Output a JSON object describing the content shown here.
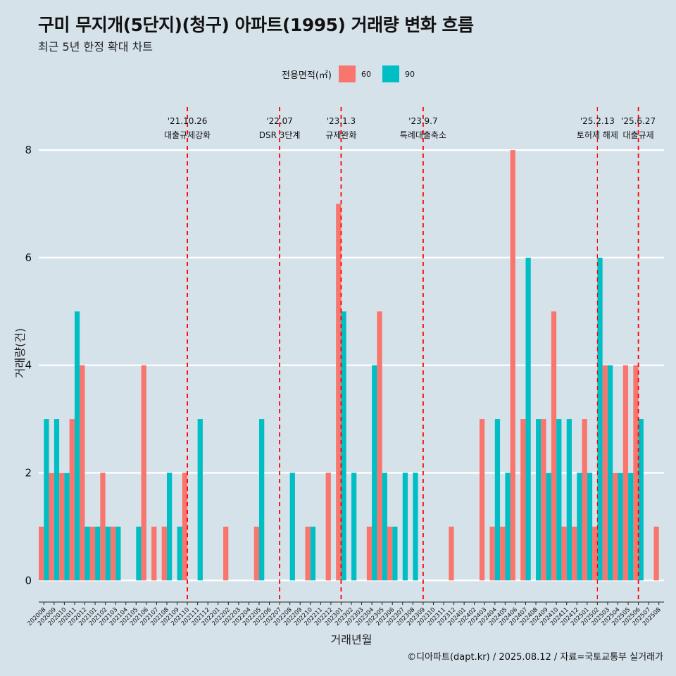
{
  "header": {
    "title": "구미 무지개(5단지)(청구) 아파트(1995) 거래량 변화 흐름",
    "subtitle": "최근 5년 한정 확대 차트"
  },
  "legend": {
    "title": "전용면적(㎡)",
    "items": [
      {
        "label": "60",
        "color": "#f8766d"
      },
      {
        "label": "90",
        "color": "#00bfc4"
      }
    ]
  },
  "caption": "©디아파트(dapt.kr) / 2025.08.12 / 자료=국토교통부 실거래가",
  "chart_data": {
    "type": "bar",
    "title": "구미 무지개(5단지)(청구) 아파트(1995) 거래량 변화 흐름",
    "xlabel": "거래년월",
    "ylabel": "거래량(건)",
    "ylim": [
      -0.35,
      8.8
    ],
    "yticks": [
      0,
      2,
      4,
      6,
      8
    ],
    "categories": [
      "202008",
      "202009",
      "202010",
      "202011",
      "202012",
      "202101",
      "202102",
      "202103",
      "202104",
      "202105",
      "202106",
      "202107",
      "202108",
      "202109",
      "202110",
      "202111",
      "202112",
      "202201",
      "202202",
      "202203",
      "202204",
      "202205",
      "202206",
      "202207",
      "202208",
      "202209",
      "202210",
      "202211",
      "202212",
      "202301",
      "202302",
      "202303",
      "202304",
      "202305",
      "202306",
      "202307",
      "202308",
      "202309",
      "202310",
      "202311",
      "202312",
      "202401",
      "202402",
      "202403",
      "202404",
      "202405",
      "202406",
      "202407",
      "202408",
      "202409",
      "202410",
      "202411",
      "202412",
      "202501",
      "202502",
      "202503",
      "202504",
      "202505",
      "202506",
      "202507",
      "202508"
    ],
    "series": [
      {
        "name": "60",
        "color": "#f8766d",
        "values": [
          1,
          2,
          2,
          3,
          4,
          1,
          2,
          1,
          0,
          0,
          4,
          1,
          1,
          0,
          2,
          0,
          0,
          0,
          1,
          0,
          0,
          1,
          0,
          0,
          0,
          0,
          1,
          0,
          2,
          7,
          0,
          0,
          1,
          5,
          1,
          0,
          0,
          0,
          0,
          0,
          1,
          0,
          0,
          3,
          1,
          1,
          8,
          3,
          0,
          3,
          5,
          1,
          1,
          3,
          1,
          4,
          2,
          4,
          4,
          0,
          1
        ]
      },
      {
        "name": "90",
        "color": "#00bfc4",
        "values": [
          3,
          3,
          2,
          5,
          1,
          1,
          1,
          1,
          0,
          1,
          0,
          0,
          2,
          1,
          0,
          3,
          0,
          0,
          0,
          0,
          0,
          3,
          0,
          0,
          2,
          0,
          1,
          0,
          0,
          5,
          2,
          0,
          4,
          2,
          1,
          2,
          2,
          0,
          0,
          0,
          0,
          0,
          0,
          0,
          3,
          2,
          0,
          6,
          3,
          2,
          3,
          3,
          2,
          2,
          6,
          4,
          2,
          2,
          3,
          0,
          0
        ]
      }
    ],
    "events": [
      {
        "month": "202110",
        "date": "'21.10.26",
        "label": "대출규제강화"
      },
      {
        "month": "202207",
        "date": "'22.07",
        "label": "DSR 3단계"
      },
      {
        "month": "202301",
        "date": "'23.1.3",
        "label": "규제완화"
      },
      {
        "month": "202309",
        "date": "'23.9.7",
        "label": "특례대출축소"
      },
      {
        "month": "202502",
        "date": "'25.2.13",
        "label": "토허제 해제"
      },
      {
        "month": "202506",
        "date": "'25.6.27",
        "label": "대출규제"
      }
    ],
    "event_line_color": "#ff0000",
    "grid": true
  }
}
